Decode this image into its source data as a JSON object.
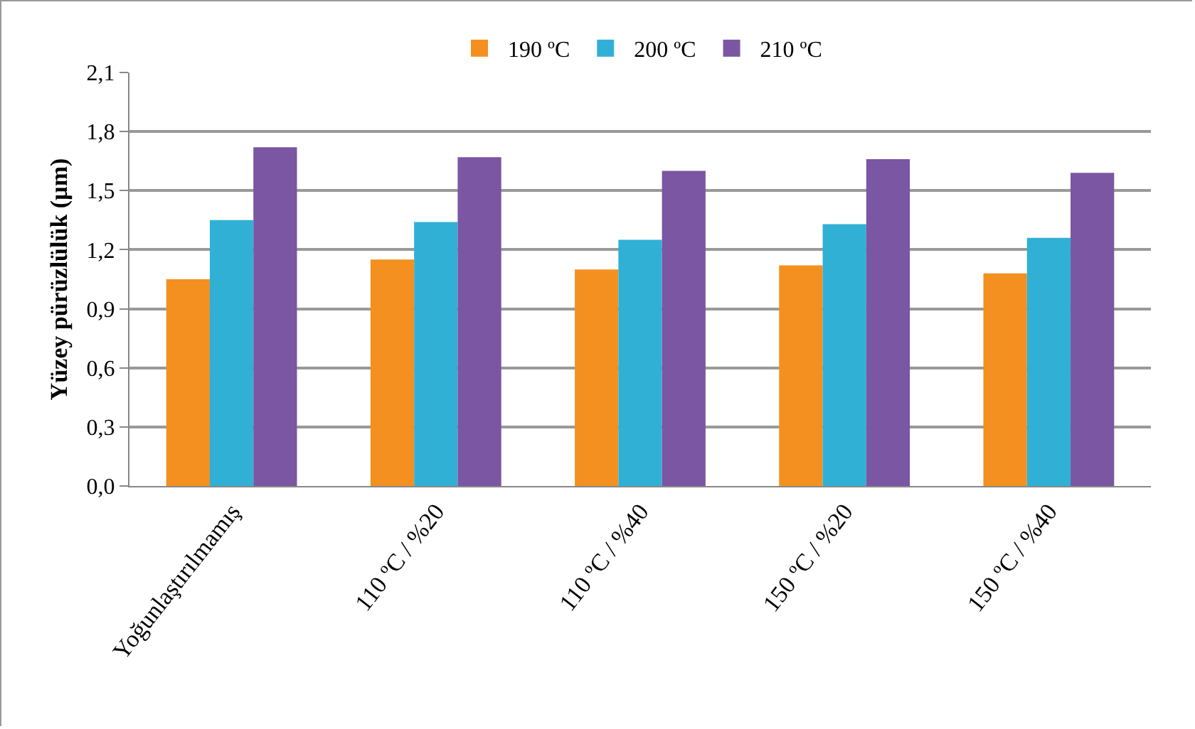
{
  "chart_data": {
    "type": "bar",
    "ylabel": "Yüzey pürüzlülük (µm)",
    "categories": [
      "Yoğunlaştırılmamış",
      "110 ºC / %20",
      "110 ºC / %40",
      "150 ºC / %20",
      "150 ºC / %40"
    ],
    "series": [
      {
        "name": "190 ºC",
        "color": "#f39020",
        "values": [
          1.05,
          1.15,
          1.1,
          1.12,
          1.08
        ]
      },
      {
        "name": "200 ºC",
        "color": "#31b0d5",
        "values": [
          1.35,
          1.34,
          1.25,
          1.33,
          1.26
        ]
      },
      {
        "name": "210 ºC",
        "color": "#7b56a2",
        "values": [
          1.72,
          1.67,
          1.6,
          1.66,
          1.59
        ]
      }
    ],
    "ylim": [
      0,
      2.1
    ],
    "yticks": [
      {
        "value": 0,
        "label": "0,0"
      },
      {
        "value": 0.3,
        "label": "0,3"
      },
      {
        "value": 0.6,
        "label": "0,6"
      },
      {
        "value": 0.9,
        "label": "0,9"
      },
      {
        "value": 1.2,
        "label": "1,2"
      },
      {
        "value": 1.5,
        "label": "1,5"
      },
      {
        "value": 1.8,
        "label": "1,8"
      },
      {
        "value": 2.1,
        "label": "2,1"
      }
    ],
    "grid": "y",
    "legend": "top"
  }
}
